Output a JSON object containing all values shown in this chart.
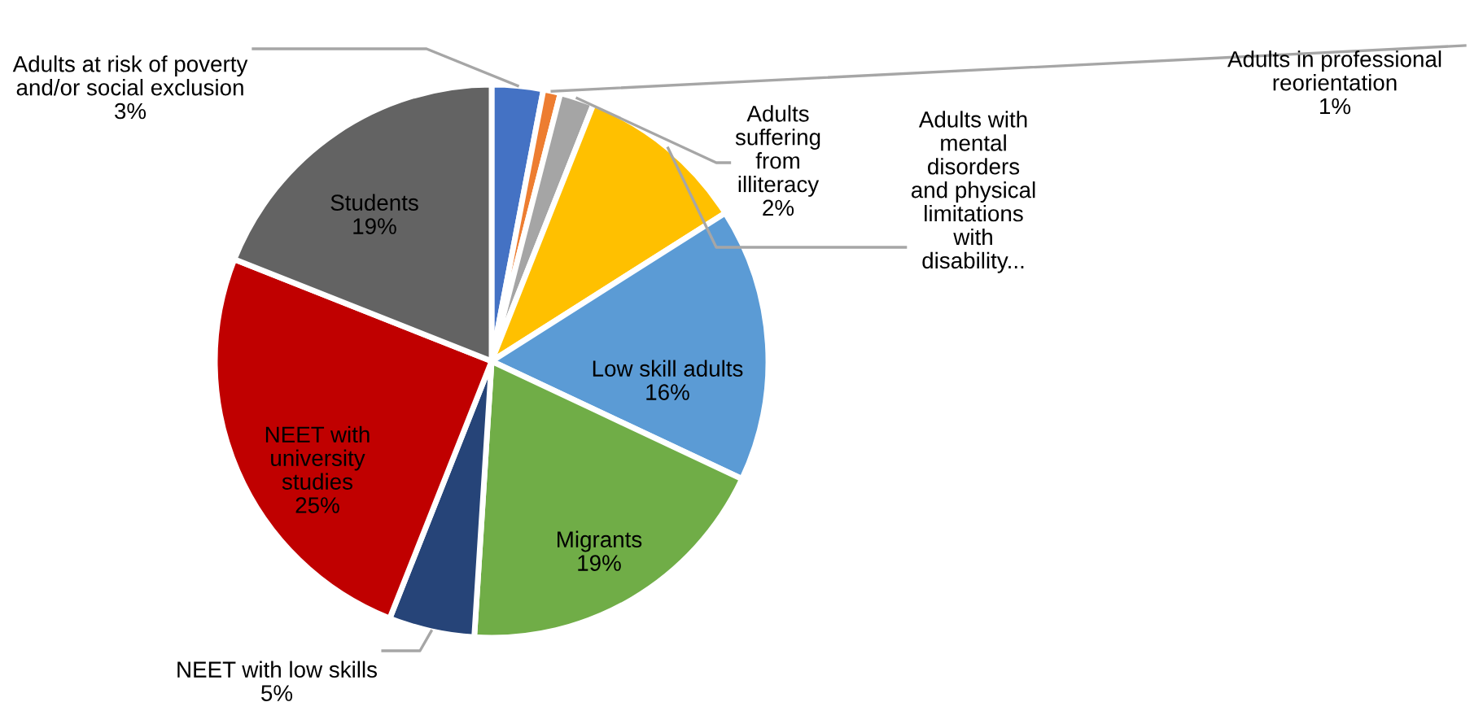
{
  "chart_data": {
    "type": "pie",
    "categories": [
      "Adults at risk of poverty\nand/or social exclusion",
      "Adults in professional\nreorientation",
      "Adults\nsuffering\nfrom\nilliteracy",
      "Adults with\nmental\ndisorders\nand physical\nlimitations\nwith\ndisability...",
      "Low skill adults",
      "Migrants",
      "NEET with low skills",
      "NEET with\nuniversity\nstudies",
      "Students"
    ],
    "values": [
      3,
      1,
      2,
      10,
      16,
      19,
      5,
      25,
      19
    ],
    "value_labels": [
      "3%",
      "1%",
      "2%",
      null,
      "16%",
      "19%",
      "5%",
      "25%",
      "19%"
    ],
    "colors": [
      "#4472c4",
      "#ed7d31",
      "#a5a5a5",
      "#ffc000",
      "#5b9bd5",
      "#70ad47",
      "#264478",
      "#c00000",
      "#636363"
    ]
  }
}
